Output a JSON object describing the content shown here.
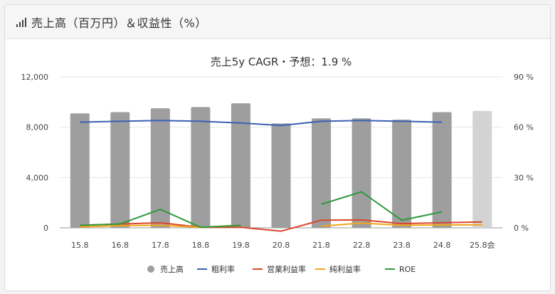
{
  "header": {
    "title": "売上高（百万円）＆収益性（%）",
    "icon": "bar-chart-icon"
  },
  "chart_data": {
    "type": "bar",
    "title": "売上5y CAGR・予想：1.9 %",
    "categories": [
      "15.8",
      "16.8",
      "17.8",
      "18.8",
      "19.8",
      "20.8",
      "21.8",
      "22.8",
      "23.8",
      "24.8",
      "25.8会"
    ],
    "left_axis": {
      "min": 0,
      "max": 12000,
      "ticks": [
        "12,000",
        "8,000",
        "4,000",
        "0"
      ],
      "tick_values": [
        12000,
        8000,
        4000,
        0
      ]
    },
    "right_axis": {
      "min": 0,
      "max": 90,
      "ticks": [
        "90 %",
        "60 %",
        "30 %",
        "0 %"
      ],
      "tick_values": [
        90,
        60,
        30,
        0
      ]
    },
    "grid": true,
    "legend_position": "bottom",
    "series": [
      {
        "name": "売上高",
        "kind": "bar",
        "axis": "left",
        "color": "#9e9e9e",
        "forecast_color": "#d3d3d3",
        "values": [
          9100,
          9200,
          9500,
          9600,
          9900,
          8300,
          8700,
          8700,
          8600,
          9200,
          9300
        ]
      },
      {
        "name": "粗利率",
        "kind": "line",
        "axis": "right",
        "color": "#3c5fb5",
        "values": [
          63,
          63.5,
          64,
          63.5,
          62.5,
          61,
          63.5,
          64,
          63.5,
          63,
          null
        ]
      },
      {
        "name": "営業利益率",
        "kind": "line",
        "axis": "right",
        "color": "#d9472b",
        "values": [
          1.5,
          2.2,
          3.0,
          0.3,
          0.3,
          -2.0,
          4.5,
          4.7,
          2.5,
          3.0,
          3.5
        ]
      },
      {
        "name": "純利益率",
        "kind": "line",
        "axis": "right",
        "color": "#f2a51a",
        "values": [
          0.5,
          1.3,
          1.5,
          0.3,
          1.5,
          null,
          1.0,
          2.8,
          1.5,
          1.7,
          1.8
        ]
      },
      {
        "name": "ROE",
        "kind": "line",
        "axis": "right",
        "color": "#2e9a3a",
        "values": [
          1.5,
          2.3,
          11,
          0.3,
          1.5,
          null,
          14,
          21.5,
          4.5,
          9.5,
          null
        ]
      }
    ]
  }
}
